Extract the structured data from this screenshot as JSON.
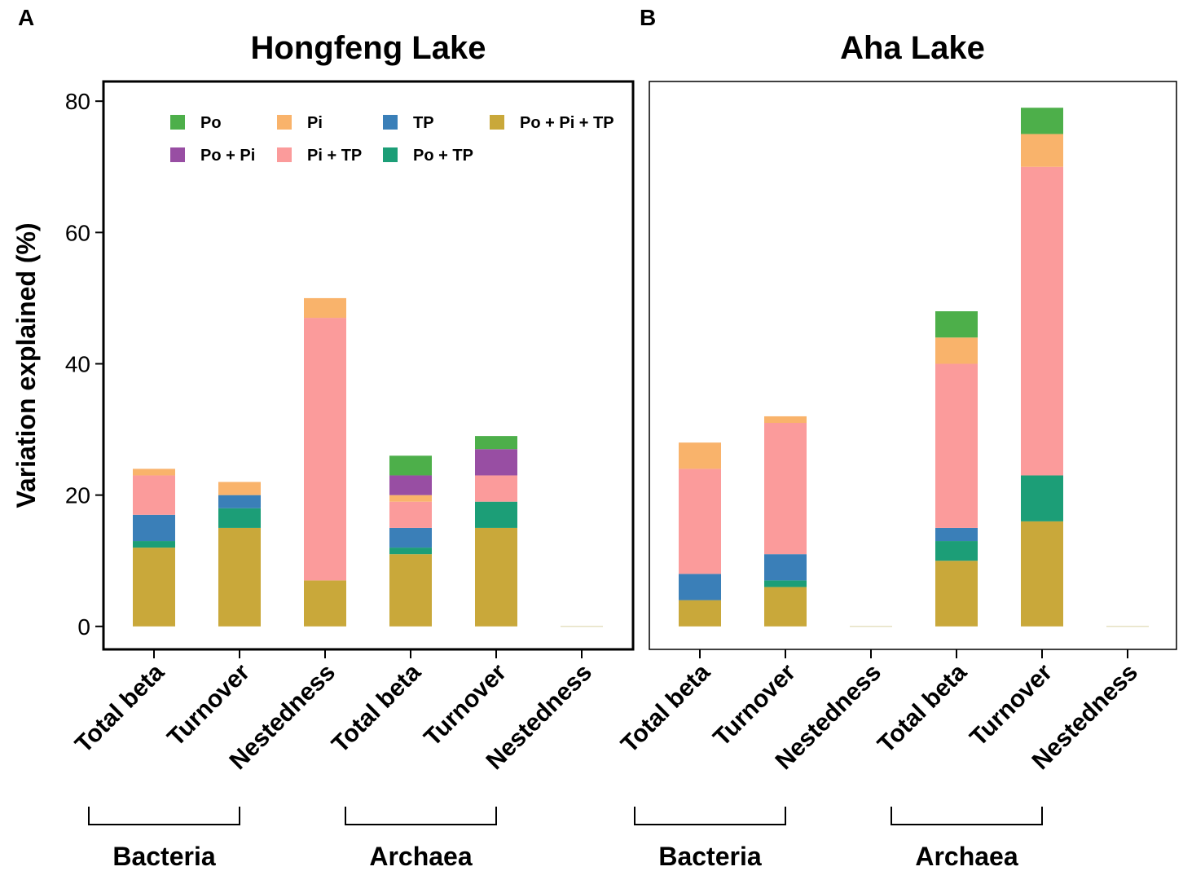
{
  "chart_data": [
    {
      "panel": "A",
      "type": "bar",
      "stacked": true,
      "title": "Hongfeng Lake",
      "ylabel": "Variation explained (%)",
      "ylim": [
        -3.5,
        83
      ],
      "yticks": [
        0,
        20,
        40,
        60,
        80
      ],
      "categories": [
        "Total beta",
        "Turnover",
        "Nestedness",
        "Total beta",
        "Turnover",
        "Nestedness"
      ],
      "groups": [
        {
          "label": "Bacteria",
          "span": [
            0,
            1
          ]
        },
        {
          "label": "Archaea",
          "span": [
            3,
            4
          ]
        }
      ],
      "series": [
        {
          "name": "Po + Pi + TP",
          "values": [
            12,
            15,
            7,
            11,
            15,
            0
          ]
        },
        {
          "name": "Po + TP",
          "values": [
            1,
            3,
            0,
            1,
            4,
            0
          ]
        },
        {
          "name": "TP",
          "values": [
            4,
            2,
            0,
            3,
            0,
            0
          ]
        },
        {
          "name": "Pi + TP",
          "values": [
            6,
            0,
            40,
            4,
            4,
            0
          ]
        },
        {
          "name": "Pi",
          "values": [
            1,
            2,
            3,
            1,
            0,
            0
          ]
        },
        {
          "name": "Po + Pi",
          "values": [
            0,
            0,
            0,
            3,
            4,
            0
          ]
        },
        {
          "name": "Po",
          "values": [
            0,
            0,
            0,
            3,
            2,
            0
          ]
        }
      ],
      "legend_position": "top"
    },
    {
      "panel": "B",
      "type": "bar",
      "stacked": true,
      "title": "Aha Lake",
      "ylim": [
        -3.5,
        83
      ],
      "categories": [
        "Total beta",
        "Turnover",
        "Nestedness",
        "Total beta",
        "Turnover",
        "Nestedness"
      ],
      "groups": [
        {
          "label": "Bacteria",
          "span": [
            0,
            1
          ]
        },
        {
          "label": "Archaea",
          "span": [
            3,
            4
          ]
        }
      ],
      "series": [
        {
          "name": "Po + Pi + TP",
          "values": [
            4,
            6,
            0,
            10,
            16,
            0
          ]
        },
        {
          "name": "Po + TP",
          "values": [
            0,
            1,
            0,
            3,
            7,
            0
          ]
        },
        {
          "name": "TP",
          "values": [
            4,
            4,
            0,
            2,
            0,
            0
          ]
        },
        {
          "name": "Pi + TP",
          "values": [
            16,
            20,
            0,
            25,
            47,
            0
          ]
        },
        {
          "name": "Pi",
          "values": [
            4,
            1,
            0,
            4,
            5,
            0
          ]
        },
        {
          "name": "Po + Pi",
          "values": [
            0,
            0,
            0,
            0,
            0,
            0
          ]
        },
        {
          "name": "Po",
          "values": [
            0,
            0,
            0,
            4,
            4,
            0
          ]
        }
      ]
    }
  ],
  "legend": {
    "items": [
      {
        "label": "Po",
        "color": "#4daf4a"
      },
      {
        "label": "Pi",
        "color": "#f9b36b"
      },
      {
        "label": "TP",
        "color": "#3a7fb8"
      },
      {
        "label": "Po + Pi + TP",
        "color": "#c9a83a"
      },
      {
        "label": "Po + Pi",
        "color": "#984ea3"
      },
      {
        "label": "Pi + TP",
        "color": "#fb9b9b"
      },
      {
        "label": "Po + TP",
        "color": "#1c9e77"
      }
    ]
  },
  "colors": {
    "Po": "#4daf4a",
    "Pi": "#f9b36b",
    "TP": "#3a7fb8",
    "Po + Pi + TP": "#c9a83a",
    "Po + Pi": "#984ea3",
    "Pi + TP": "#fb9b9b",
    "Po + TP": "#1c9e77"
  }
}
